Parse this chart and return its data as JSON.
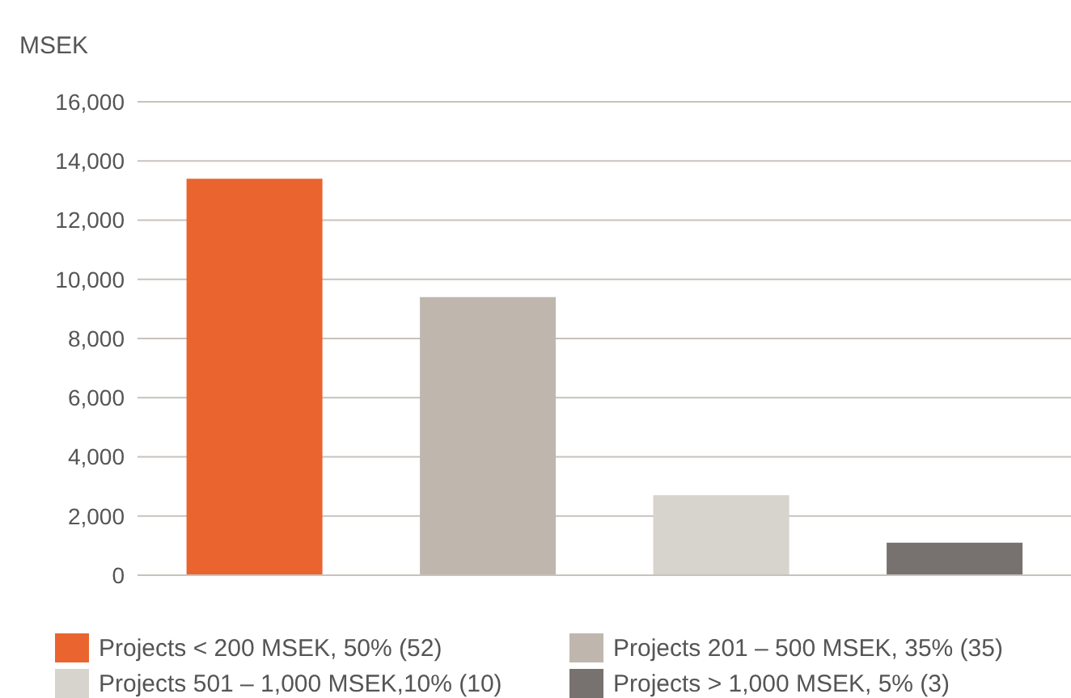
{
  "chart_data": {
    "type": "bar",
    "ylabel": "MSEK",
    "categories": [
      null,
      null,
      null,
      null
    ],
    "series": [
      {
        "name": "Projects < 200 MSEK, 50% (52)",
        "color": "#ea6430",
        "values": [
          13400,
          null,
          null,
          null
        ]
      },
      {
        "name": "Projects 201 – 500 MSEK, 35% (35)",
        "color": "#bfb6ad",
        "values": [
          null,
          9400,
          null,
          null
        ]
      },
      {
        "name": "Projects 501 – 1,000 MSEK,10% (10)",
        "color": "#d7d3cd",
        "values": [
          null,
          null,
          2700,
          null
        ]
      },
      {
        "name": "Projects > 1,000 MSEK, 5% (3)",
        "color": "#77716f",
        "values": [
          null,
          null,
          null,
          1100
        ]
      }
    ],
    "ylim": [
      0,
      16000
    ],
    "yticks": [
      0,
      {
        "value": 2000,
        "label": "2,000"
      },
      {
        "value": 4000,
        "label": "4,000"
      },
      {
        "value": 6000,
        "label": "6,000"
      },
      {
        "value": 8000,
        "label": "8,000"
      },
      {
        "value": 10000,
        "label": "10,000"
      },
      {
        "value": 12000,
        "label": "12,000"
      },
      {
        "value": 14000,
        "label": "14,000"
      },
      {
        "value": 16000,
        "label": "16,000"
      }
    ],
    "grid": "y",
    "legend": "bottom"
  }
}
